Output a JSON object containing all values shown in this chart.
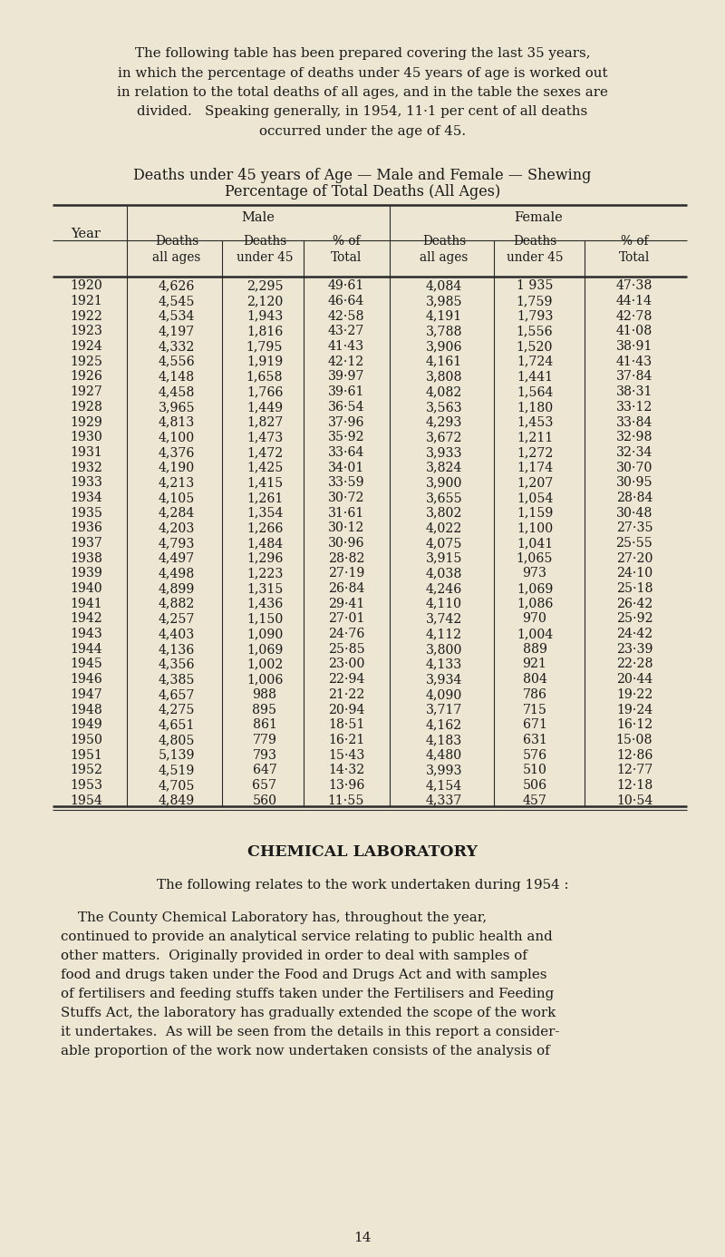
{
  "bg_color": "#ece6d3",
  "text_color": "#1a1a1a",
  "intro_lines": [
    "The following table has been prepared covering the last 35 years,",
    "in which the percentage of deaths under 45 years of age is worked out",
    "in relation to the total deaths of all ages, and in the table the sexes are",
    "divided.   Speaking generally, in 1954, 11·1 per cent of all deaths",
    "occurred under the age of 45."
  ],
  "title_line1": "Deaths under 45 years of Age — Male and Female — Shewing",
  "title_line2": "Percentage of Total Deaths (All Ages)",
  "years": [
    1920,
    1921,
    1922,
    1923,
    1924,
    1925,
    1926,
    1927,
    1928,
    1929,
    1930,
    1931,
    1932,
    1933,
    1934,
    1935,
    1936,
    1937,
    1938,
    1939,
    1940,
    1941,
    1942,
    1943,
    1944,
    1945,
    1946,
    1947,
    1948,
    1949,
    1950,
    1951,
    1952,
    1953,
    1954
  ],
  "male_all_ages": [
    "4,626",
    "4,545",
    "4,534",
    "4,197",
    "4,332",
    "4,556",
    "4,148",
    "4,458",
    "3,965",
    "4,813",
    "4,100",
    "4,376",
    "4,190",
    "4,213",
    "4,105",
    "4,284",
    "4,203",
    "4,793",
    "4,497",
    "4,498",
    "4,899",
    "4,882",
    "4,257",
    "4,403",
    "4,136",
    "4,356",
    "4,385",
    "4,657",
    "4,275",
    "4,651",
    "4,805",
    "5,139",
    "4,519",
    "4,705",
    "4,849"
  ],
  "male_under_45": [
    "2,295",
    "2,120",
    "1,943",
    "1,816",
    "1,795",
    "1,919",
    "1,658",
    "1,766",
    "1,449",
    "1,827",
    "1,473",
    "1,472",
    "1,425",
    "1,415",
    "1,261",
    "1,354",
    "1,266",
    "1,484",
    "1,296",
    "1,223",
    "1,315",
    "1,436",
    "1,150",
    "1,090",
    "1,069",
    "1,002",
    "1,006",
    "988",
    "895",
    "861",
    "779",
    "793",
    "647",
    "657",
    "560"
  ],
  "male_pct": [
    "49·61",
    "46·64",
    "42·58",
    "43·27",
    "41·43",
    "42·12",
    "39·97",
    "39·61",
    "36·54",
    "37·96",
    "35·92",
    "33·64",
    "34·01",
    "33·59",
    "30·72",
    "31·61",
    "30·12",
    "30·96",
    "28·82",
    "27·19",
    "26·84",
    "29·41",
    "27·01",
    "24·76",
    "25·85",
    "23·00",
    "22·94",
    "21·22",
    "20·94",
    "18·51",
    "16·21",
    "15·43",
    "14·32",
    "13·96",
    "11·55"
  ],
  "female_all_ages": [
    "4,084",
    "3,985",
    "4,191",
    "3,788",
    "3,906",
    "4,161",
    "3,808",
    "4,082",
    "3,563",
    "4,293",
    "3,672",
    "3,933",
    "3,824",
    "3,900",
    "3,655",
    "3,802",
    "4,022",
    "4,075",
    "3,915",
    "4,038",
    "4,246",
    "4,110",
    "3,742",
    "4,112",
    "3,800",
    "4,133",
    "3,934",
    "4,090",
    "3,717",
    "4,162",
    "4,183",
    "4,480",
    "3,993",
    "4,154",
    "4,337"
  ],
  "female_under_45": [
    "1 935",
    "1,759",
    "1,793",
    "1,556",
    "1,520",
    "1,724",
    "1,441",
    "1,564",
    "1,180",
    "1,453",
    "1,211",
    "1,272",
    "1,174",
    "1,207",
    "1,054",
    "1,159",
    "1,100",
    "1,041",
    "1,065",
    "973",
    "1,069",
    "1,086",
    "970",
    "1,004",
    "889",
    "921",
    "804",
    "786",
    "715",
    "671",
    "631",
    "576",
    "510",
    "506",
    "457"
  ],
  "female_pct": [
    "47·38",
    "44·14",
    "42·78",
    "41·08",
    "38·91",
    "41·43",
    "37·84",
    "38·31",
    "33·12",
    "33·84",
    "32·98",
    "32·34",
    "30·70",
    "30·95",
    "28·84",
    "30·48",
    "27·35",
    "25·55",
    "27·20",
    "24·10",
    "25·18",
    "26·42",
    "25·92",
    "24·42",
    "23·39",
    "22·28",
    "20·44",
    "19·22",
    "19·24",
    "16·12",
    "15·08",
    "12·86",
    "12·77",
    "12·18",
    "10·54"
  ],
  "chem_title": "CHEMICAL LABORATORY",
  "chem_line1": "The following relates to the work undertaken during 1954 :",
  "chem_para": [
    "    The County Chemical Laboratory has, throughout the year,",
    "continued to provide an analytical service relating to public health and",
    "other matters.  Originally provided in order to deal with samples of",
    "food and drugs taken under the Food and Drugs Act and with samples",
    "of fertilisers and feeding stuffs taken under the Fertilisers and Feeding",
    "Stuffs Act, the laboratory has gradually extended the scope of the work",
    "it undertakes.  As will be seen from the details in this report a consider-",
    "able proportion of the work now undertaken consists of the analysis of"
  ],
  "page_number": "14"
}
